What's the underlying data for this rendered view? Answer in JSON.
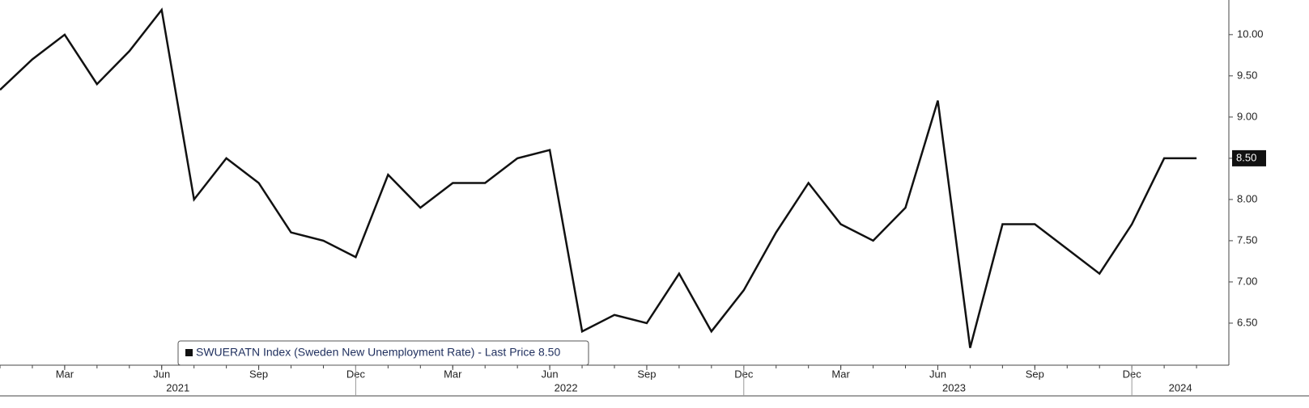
{
  "chart_data": {
    "type": "line",
    "x": [
      "2021-01",
      "2021-02",
      "2021-03",
      "2021-04",
      "2021-05",
      "2021-06",
      "2021-07",
      "2021-08",
      "2021-09",
      "2021-10",
      "2021-11",
      "2021-12",
      "2022-01",
      "2022-02",
      "2022-03",
      "2022-04",
      "2022-05",
      "2022-06",
      "2022-07",
      "2022-08",
      "2022-09",
      "2022-10",
      "2022-11",
      "2022-12",
      "2023-01",
      "2023-02",
      "2023-03",
      "2023-04",
      "2023-05",
      "2023-06",
      "2023-07",
      "2023-08",
      "2023-09",
      "2023-10",
      "2023-11",
      "2023-12",
      "2024-01",
      "2024-02"
    ],
    "series": [
      {
        "name": "SWUERATN Index (Sweden New Unemployment Rate) - Last Price 8.50",
        "color": "#111111",
        "values": [
          9.33,
          9.7,
          10.0,
          9.4,
          9.8,
          10.3,
          8.0,
          8.5,
          8.2,
          7.6,
          7.5,
          7.3,
          8.3,
          7.9,
          8.2,
          8.2,
          8.5,
          8.6,
          6.4,
          6.6,
          6.5,
          7.1,
          6.4,
          6.9,
          7.6,
          8.2,
          7.7,
          7.5,
          7.9,
          9.2,
          6.2,
          7.7,
          7.7,
          7.4,
          7.1,
          7.7,
          8.5,
          8.5
        ]
      }
    ],
    "last_price": {
      "value": 8.5,
      "label": "8.50"
    },
    "xlim": [
      "2021-01",
      "2024-03"
    ],
    "ylim": [
      5.99,
      10.42
    ],
    "yticks": [
      {
        "value": 6.5,
        "label": "6.50"
      },
      {
        "value": 7.0,
        "label": "7.00"
      },
      {
        "value": 7.5,
        "label": "7.50"
      },
      {
        "value": 8.0,
        "label": "8.00"
      },
      {
        "value": 8.5,
        "label": "8.50"
      },
      {
        "value": 9.0,
        "label": "9.00"
      },
      {
        "value": 9.5,
        "label": "9.50"
      },
      {
        "value": 10.0,
        "label": "10.00"
      }
    ],
    "xticks": [
      {
        "value": "2021-03",
        "label": "Mar"
      },
      {
        "value": "2021-06",
        "label": "Jun"
      },
      {
        "value": "2021-09",
        "label": "Sep"
      },
      {
        "value": "2021-12",
        "label": "Dec"
      },
      {
        "value": "2022-03",
        "label": "Mar"
      },
      {
        "value": "2022-06",
        "label": "Jun"
      },
      {
        "value": "2022-09",
        "label": "Sep"
      },
      {
        "value": "2022-12",
        "label": "Dec"
      },
      {
        "value": "2023-03",
        "label": "Mar"
      },
      {
        "value": "2023-06",
        "label": "Jun"
      },
      {
        "value": "2023-09",
        "label": "Sep"
      },
      {
        "value": "2023-12",
        "label": "Dec"
      }
    ],
    "year_ticks": [
      {
        "value": "2021-06",
        "label": "2021"
      },
      {
        "value": "2022-06",
        "label": "2022"
      },
      {
        "value": "2023-06",
        "label": "2023"
      },
      {
        "value": "2024-01",
        "label": "2024"
      }
    ],
    "legend": "bottom-left"
  }
}
